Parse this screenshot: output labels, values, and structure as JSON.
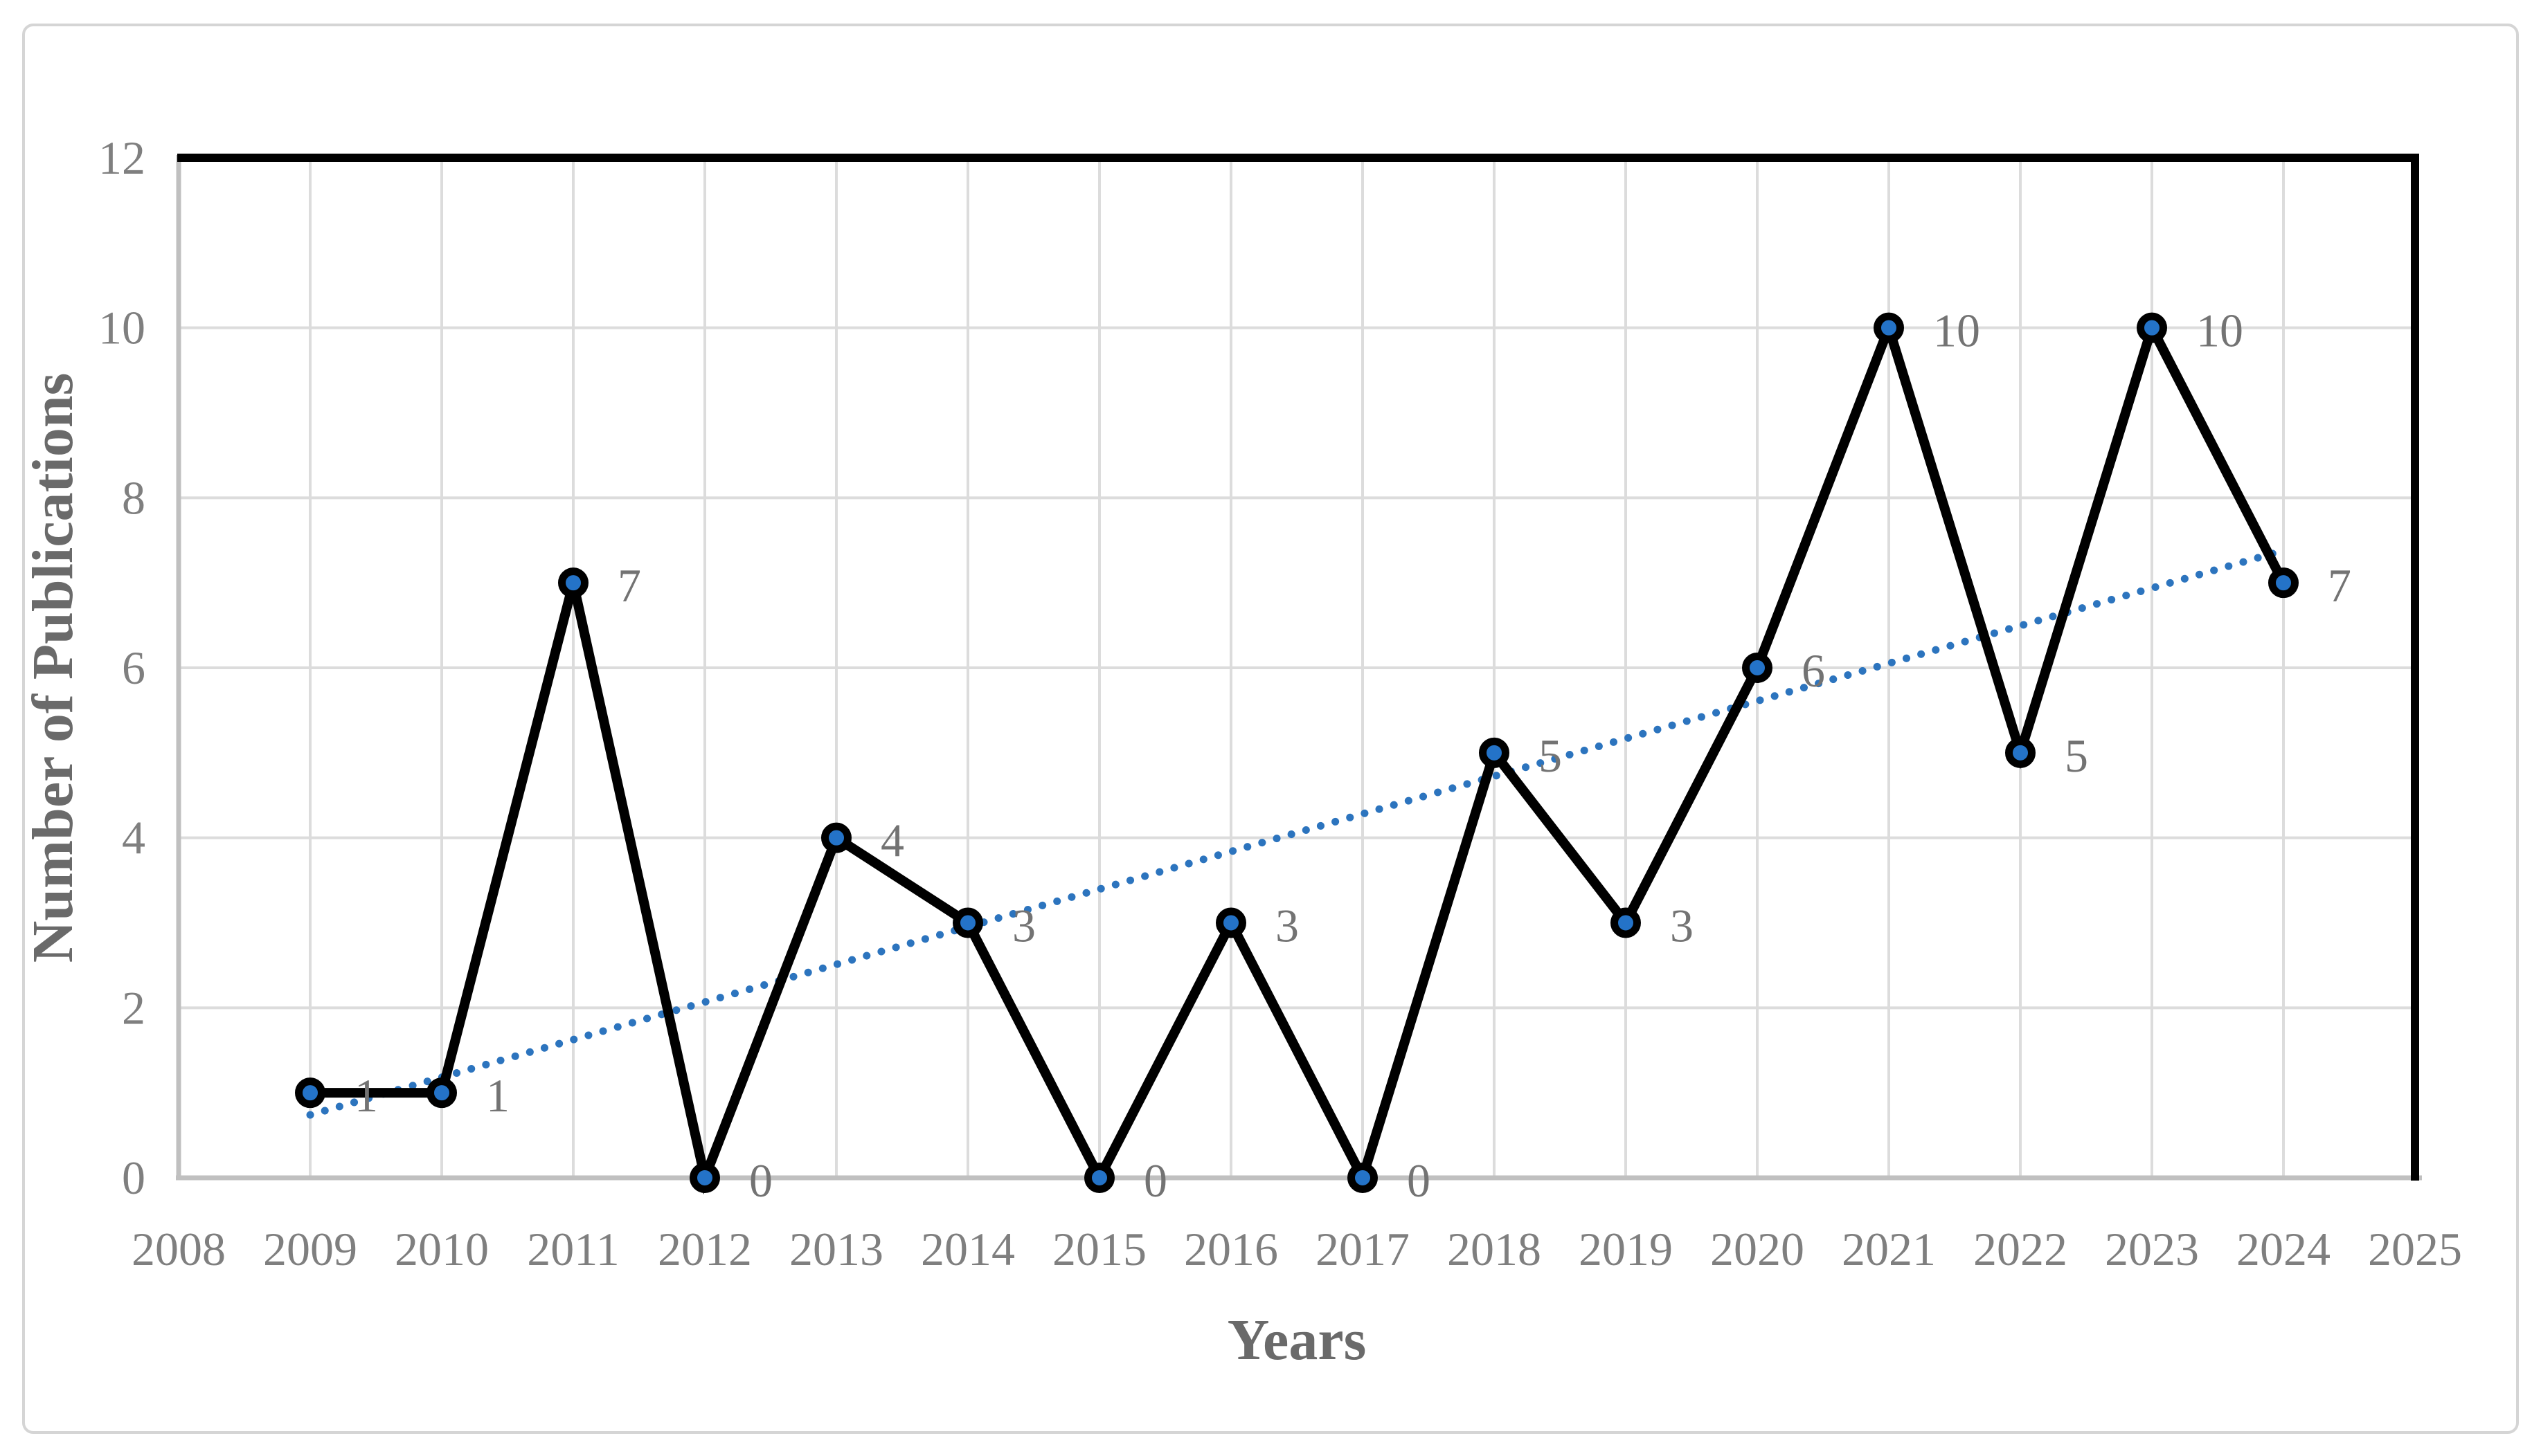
{
  "figure": {
    "background": "#FFFFFF",
    "border_color": "#D5D5D5"
  },
  "chart_data": {
    "type": "line",
    "title": "",
    "xlabel": "Years",
    "ylabel": "Number of Publications",
    "categories": [
      2009,
      2010,
      2011,
      2012,
      2013,
      2014,
      2015,
      2016,
      2017,
      2018,
      2019,
      2020,
      2021,
      2022,
      2023,
      2024
    ],
    "values": [
      1,
      1,
      7,
      0,
      4,
      3,
      0,
      3,
      0,
      5,
      3,
      6,
      10,
      5,
      10,
      7
    ],
    "data_labels": [
      "1",
      "1",
      "7",
      "0",
      "4",
      "3",
      "0",
      "3",
      "0",
      "5",
      "3",
      "6",
      "10",
      "5",
      "10",
      "7"
    ],
    "x_tick_labels": [
      "2008",
      "2009",
      "2010",
      "2011",
      "2012",
      "2013",
      "2014",
      "2015",
      "2016",
      "2017",
      "2018",
      "2019",
      "2020",
      "2021",
      "2022",
      "2023",
      "2024",
      "2025"
    ],
    "y_tick_labels": [
      "0",
      "2",
      "4",
      "6",
      "8",
      "10",
      "12"
    ],
    "xlim": [
      2008,
      2025
    ],
    "ylim": [
      0,
      12
    ],
    "grid": true,
    "legend": "none",
    "marker": "circle",
    "line_style": "solid",
    "trendline": {
      "type": "linear",
      "style": "dotted",
      "from": {
        "x": 2009,
        "y": 0.74
      },
      "to": {
        "x": 2024,
        "y": 7.38
      }
    },
    "colors": {
      "series_line": "#000000",
      "marker_fill": "#2473C8",
      "marker_stroke": "#000000",
      "trendline": "#2C74BE",
      "gridline": "#DCDCDC",
      "axis_line": "#C0C0C0",
      "plot_border": "#000000",
      "tick_label": "#7F7F7F",
      "data_label": "#737373",
      "axis_title": "#6A6A6A"
    }
  }
}
